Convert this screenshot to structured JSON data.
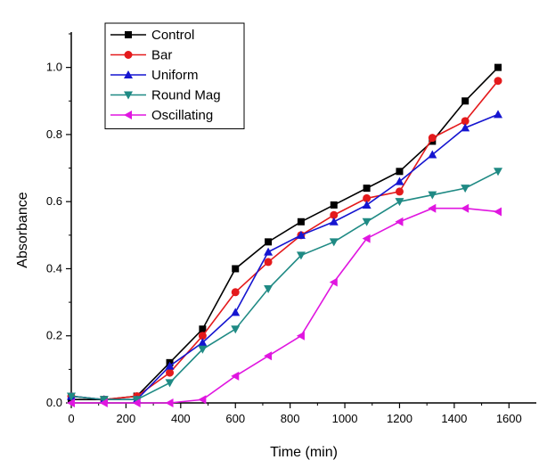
{
  "chart_data": {
    "type": "line",
    "title": "",
    "xlabel": "Time (min)",
    "ylabel": "Absorbance",
    "xlim": [
      0,
      1700
    ],
    "ylim": [
      0,
      1.1
    ],
    "xticks": [
      "0",
      "200",
      "400",
      "600",
      "800",
      "1000",
      "1200",
      "1400",
      "1600"
    ],
    "yticks": [
      "0.0",
      "0.2",
      "0.4",
      "0.6",
      "0.8",
      "1.0"
    ],
    "grid": false,
    "legend_position": "top-left",
    "series": [
      {
        "name": "Control",
        "color": "#000000",
        "marker": "square",
        "x": [
          0,
          120,
          240,
          360,
          480,
          600,
          720,
          840,
          960,
          1080,
          1200,
          1320,
          1440,
          1560
        ],
        "y": [
          0.01,
          0.01,
          0.02,
          0.12,
          0.22,
          0.4,
          0.48,
          0.54,
          0.59,
          0.64,
          0.69,
          0.78,
          0.9,
          1.0
        ]
      },
      {
        "name": "Bar",
        "color": "#e41a1c",
        "marker": "circle",
        "x": [
          0,
          120,
          240,
          360,
          480,
          600,
          720,
          840,
          960,
          1080,
          1200,
          1320,
          1440,
          1560
        ],
        "y": [
          0.02,
          0.01,
          0.02,
          0.09,
          0.2,
          0.33,
          0.42,
          0.5,
          0.56,
          0.61,
          0.63,
          0.79,
          0.84,
          0.96
        ]
      },
      {
        "name": "Uniform",
        "color": "#1515d0",
        "marker": "triangle-up",
        "x": [
          0,
          120,
          240,
          360,
          480,
          600,
          720,
          840,
          960,
          1080,
          1200,
          1320,
          1440,
          1560
        ],
        "y": [
          0.02,
          0.01,
          0.01,
          0.11,
          0.18,
          0.27,
          0.45,
          0.5,
          0.54,
          0.59,
          0.66,
          0.74,
          0.82,
          0.86
        ]
      },
      {
        "name": "Round Mag",
        "color": "#1f8a84",
        "marker": "triangle-down",
        "x": [
          0,
          120,
          240,
          360,
          480,
          600,
          720,
          840,
          960,
          1080,
          1200,
          1320,
          1440,
          1560
        ],
        "y": [
          0.02,
          0.01,
          0.01,
          0.06,
          0.16,
          0.22,
          0.34,
          0.44,
          0.48,
          0.54,
          0.6,
          0.62,
          0.64,
          0.69
        ]
      },
      {
        "name": "Oscillating",
        "color": "#e016e0",
        "marker": "triangle-left",
        "x": [
          0,
          120,
          240,
          360,
          480,
          600,
          720,
          840,
          960,
          1080,
          1200,
          1320,
          1440,
          1560
        ],
        "y": [
          0.0,
          0.0,
          0.0,
          0.0,
          0.01,
          0.08,
          0.14,
          0.2,
          0.36,
          0.49,
          0.54,
          0.58,
          0.58,
          0.57
        ]
      }
    ]
  }
}
